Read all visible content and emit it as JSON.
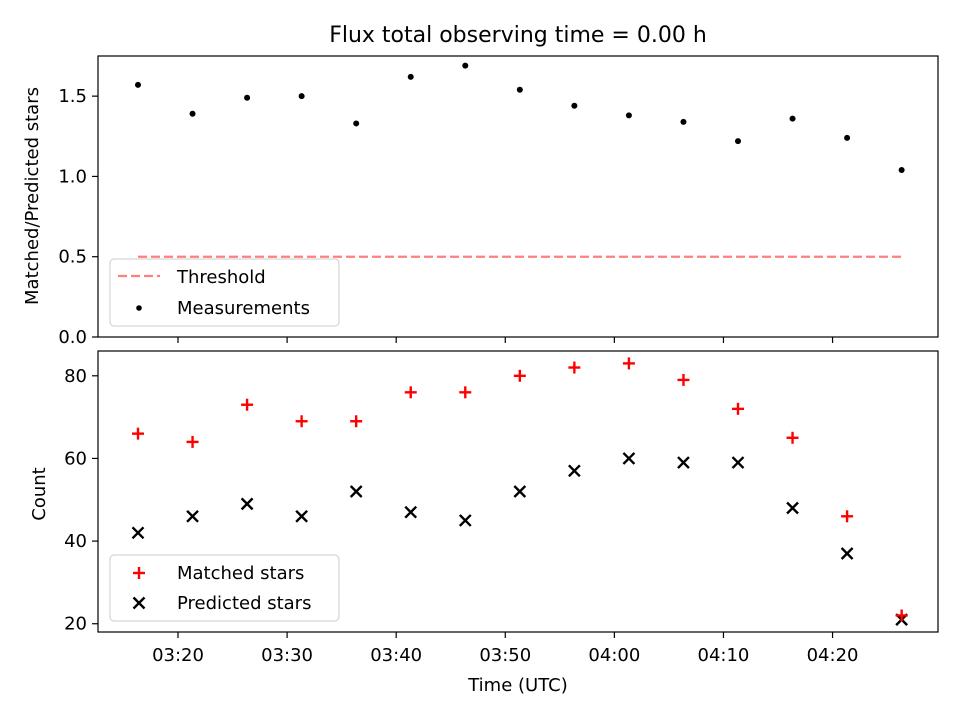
{
  "figure": {
    "title": "Flux total observing time = 0.00 h",
    "xlabel": "Time (UTC)"
  },
  "chart_data": [
    {
      "type": "scatter",
      "title": "Flux total observing time = 0.00 h",
      "ylabel": "Matched/Predicted stars",
      "xlim": [
        "03:12:40",
        "04:29:40"
      ],
      "ylim": [
        0,
        1.75
      ],
      "yticks": [
        0.0,
        0.5,
        1.0,
        1.5
      ],
      "yticklabels": [
        "0.0",
        "0.5",
        "1.0",
        "1.5"
      ],
      "xticks": [
        "03:20",
        "03:30",
        "03:40",
        "03:50",
        "04:00",
        "04:10",
        "04:20"
      ],
      "xticklabels_shown": false,
      "legend_position": "lower-left",
      "threshold": {
        "name": "Threshold",
        "value": 0.5,
        "x_start": "03:16:20",
        "x_end": "04:26:20",
        "color": "#ff7f7f",
        "style": "dashed"
      },
      "series": [
        {
          "name": "Measurements",
          "marker": "dot",
          "color": "#000000",
          "x": [
            "03:16:20",
            "03:21:20",
            "03:26:20",
            "03:31:20",
            "03:36:20",
            "03:41:20",
            "03:46:20",
            "03:51:20",
            "03:56:20",
            "04:01:20",
            "04:06:20",
            "04:11:20",
            "04:16:20",
            "04:21:20",
            "04:26:20"
          ],
          "y": [
            1.57,
            1.39,
            1.49,
            1.5,
            1.33,
            1.62,
            1.69,
            1.54,
            1.44,
            1.38,
            1.34,
            1.22,
            1.36,
            1.24,
            1.04
          ]
        }
      ]
    },
    {
      "type": "scatter",
      "ylabel": "Count",
      "xlabel": "Time (UTC)",
      "xlim": [
        "03:12:40",
        "04:29:40"
      ],
      "ylim": [
        18,
        86
      ],
      "yticks": [
        20,
        40,
        60,
        80
      ],
      "yticklabels": [
        "20",
        "40",
        "60",
        "80"
      ],
      "xticks": [
        "03:20",
        "03:30",
        "03:40",
        "03:50",
        "04:00",
        "04:10",
        "04:20"
      ],
      "xticklabels": [
        "03:20",
        "03:30",
        "03:40",
        "03:50",
        "04:00",
        "04:10",
        "04:20"
      ],
      "legend_position": "lower-left",
      "series": [
        {
          "name": "Matched stars",
          "marker": "plus",
          "color": "#ff0000",
          "x": [
            "03:16:20",
            "03:21:20",
            "03:26:20",
            "03:31:20",
            "03:36:20",
            "03:41:20",
            "03:46:20",
            "03:51:20",
            "03:56:20",
            "04:01:20",
            "04:06:20",
            "04:11:20",
            "04:16:20",
            "04:21:20",
            "04:26:20"
          ],
          "y": [
            66,
            64,
            73,
            69,
            69,
            76,
            76,
            80,
            82,
            83,
            79,
            72,
            65,
            46,
            22
          ]
        },
        {
          "name": "Predicted stars",
          "marker": "x",
          "color": "#000000",
          "x": [
            "03:16:20",
            "03:21:20",
            "03:26:20",
            "03:31:20",
            "03:36:20",
            "03:41:20",
            "03:46:20",
            "03:51:20",
            "03:56:20",
            "04:01:20",
            "04:06:20",
            "04:11:20",
            "04:16:20",
            "04:21:20",
            "04:26:20"
          ],
          "y": [
            42,
            46,
            49,
            46,
            52,
            47,
            45,
            52,
            57,
            60,
            59,
            59,
            48,
            37,
            21
          ]
        }
      ]
    }
  ]
}
